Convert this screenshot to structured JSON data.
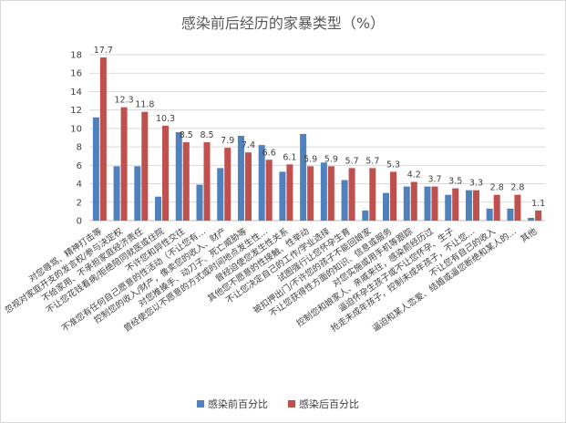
{
  "chart_data": {
    "type": "bar",
    "title": "感染前后经历的家暴类型（%）",
    "categories": [
      "对您辱骂、精神打击等",
      "忽视对家庭开支的发言权/参与决定权",
      "不给家用、不承担家庭经济责任",
      "不让您花钱看病/拒绝陪同就医或住院",
      "不许您和异性交往",
      "不准您有任何自己愿意的性活动（不让您有…",
      "控制您的收入/财产，像卖您的收入、财产",
      "对您推搡手、动刀子、死亡威胁等",
      "曾经使您以不愿意的方式或时间地点发生性…",
      "曾经迫使您发生性关系",
      "其他您不愿意的性接触、性举动",
      "不让您决定自己的工作/学业选择",
      "试图强行让您怀孕生育",
      "被扣押出门/不许您的孩子不能回娘家",
      "不让您获得性方面的知识、信息或服务",
      "对您实施或用手机等跟踪",
      "控制您和娘家人、亲戚来往，感染前经历过",
      "逼迫怀孕生孩子或不让您怀孕、生子",
      "抢走未成年孩子，控制未成年孩子，不让您…",
      "不让您有自己的收入",
      "逼迫和某人恋爱、结婚或逼您断绝和某人的…",
      "其他"
    ],
    "series": [
      {
        "name": "感染前百分比",
        "color": "#4f81bd",
        "values": [
          11.2,
          5.9,
          5.9,
          2.6,
          9.6,
          3.9,
          5.7,
          9.2,
          8.2,
          5.3,
          9.4,
          6.3,
          4.4,
          1.1,
          3.0,
          3.7,
          3.7,
          2.8,
          3.3,
          1.3,
          1.3,
          0.3
        ]
      },
      {
        "name": "感染后百分比",
        "color": "#c0504d",
        "values": [
          17.7,
          12.3,
          11.8,
          10.3,
          8.5,
          8.5,
          7.9,
          7.4,
          6.6,
          6.1,
          5.9,
          5.9,
          5.7,
          5.7,
          5.3,
          4.2,
          3.7,
          3.5,
          3.3,
          2.8,
          2.8,
          1.1
        ]
      }
    ],
    "data_labels": [
      "17.7",
      "12.3",
      "11.8",
      "10.3",
      "8.5",
      "8.5",
      "7.9",
      "7.4",
      "6.6",
      "6.1",
      "5.9",
      "5.9",
      "5.7",
      "5.7",
      "5.3",
      "4.2",
      "3.7",
      "3.5",
      "3.3",
      "2.8",
      "2.8",
      "1.1"
    ],
    "yticks": [
      "0",
      "2",
      "4",
      "6",
      "8",
      "10",
      "12",
      "14",
      "16",
      "18"
    ],
    "ylim": [
      0,
      18
    ],
    "xlabel": "",
    "ylabel": "",
    "grid": true,
    "legend_position": "bottom"
  }
}
